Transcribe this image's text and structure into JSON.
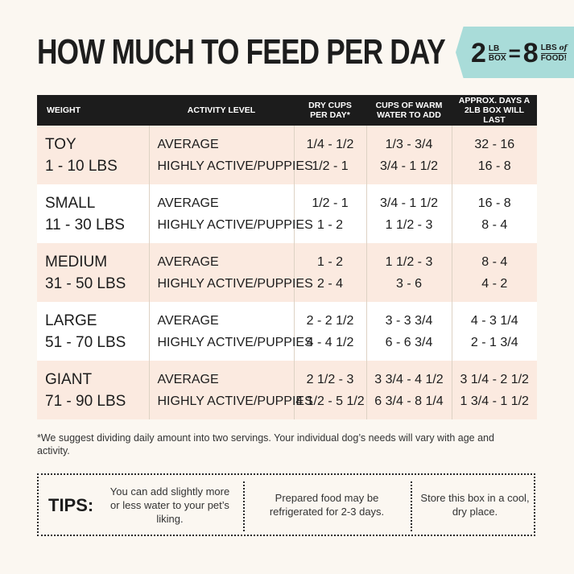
{
  "title": "HOW MUCH TO FEED PER DAY",
  "badge": {
    "left_num": "2",
    "left_top": "LB",
    "left_bottom": "BOX",
    "equals": "=",
    "right_num": "8",
    "right_top": "LBS",
    "right_of": "of",
    "right_bottom": "FOOD!",
    "color": "#a9dcd9"
  },
  "table": {
    "headers": {
      "weight": "WEIGHT",
      "activity": "ACTIVITY LEVEL",
      "dry_1": "DRY CUPS",
      "dry_2": "PER DAY*",
      "water_1": "CUPS OF WARM",
      "water_2": "WATER TO ADD",
      "days_1": "APPROX. DAYS A",
      "days_2": "2LB BOX WILL LAST"
    },
    "rows": [
      {
        "size": "TOY",
        "range": "1 - 10 LBS",
        "act1": "AVERAGE",
        "act2": "HIGHLY ACTIVE/PUPPIES",
        "dry1": "1/4 - 1/2",
        "dry2": "1/2 - 1",
        "water1": "1/3 - 3/4",
        "water2": "3/4 - 1 1/2",
        "days1": "32 - 16",
        "days2": "16 - 8"
      },
      {
        "size": "SMALL",
        "range": "11 - 30 LBS",
        "act1": "AVERAGE",
        "act2": "HIGHLY ACTIVE/PUPPIES",
        "dry1": "1/2 - 1",
        "dry2": "1 - 2",
        "water1": "3/4 - 1 1/2",
        "water2": "1 1/2 - 3",
        "days1": "16 - 8",
        "days2": "8 - 4"
      },
      {
        "size": "MEDIUM",
        "range": "31 - 50 LBS",
        "act1": "AVERAGE",
        "act2": "HIGHLY ACTIVE/PUPPIES",
        "dry1": "1 - 2",
        "dry2": "2 - 4",
        "water1": "1 1/2 - 3",
        "water2": "3 - 6",
        "days1": "8 - 4",
        "days2": "4 - 2"
      },
      {
        "size": "LARGE",
        "range": "51 - 70 LBS",
        "act1": "AVERAGE",
        "act2": "HIGHLY ACTIVE/PUPPIES",
        "dry1": "2 - 2 1/2",
        "dry2": "4 - 4 1/2",
        "water1": "3 - 3 3/4",
        "water2": "6 - 6 3/4",
        "days1": "4 - 3 1/4",
        "days2": "2 - 1 3/4"
      },
      {
        "size": "GIANT",
        "range": "71 - 90 LBS",
        "act1": "AVERAGE",
        "act2": "HIGHLY ACTIVE/PUPPIES",
        "dry1": "2 1/2 - 3",
        "dry2": "4 1/2 - 5 1/2",
        "water1": "3 3/4 - 4 1/2",
        "water2": "6 3/4 - 8 1/4",
        "days1": "3 1/4 - 2 1/2",
        "days2": "1 3/4 - 1 1/2"
      }
    ]
  },
  "footnote": "*We suggest dividing daily amount into two servings. Your individual dog’s needs will vary with age and activity.",
  "tips": {
    "label": "TIPS:",
    "tip1": "You can add slightly more or less water to your pet’s liking.",
    "tip2": "Prepared food may be refrigerated for 2-3 days.",
    "tip3": "Store this box in a cool, dry place."
  }
}
